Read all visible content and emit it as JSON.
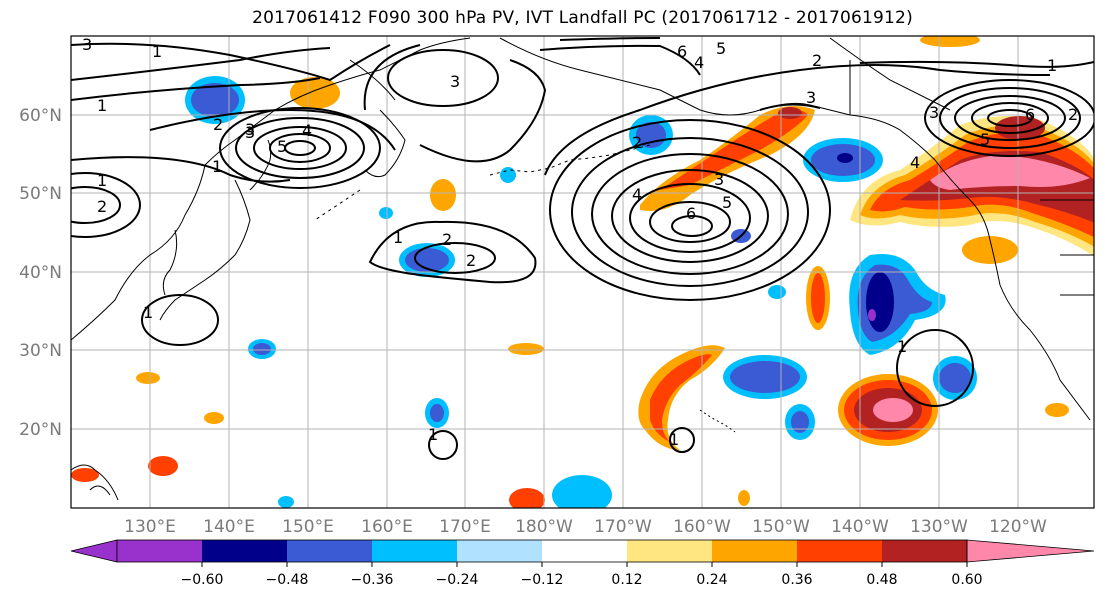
{
  "title": "2017061412 F090 300 hPa PV, IVT Landfall PC (2017061712 - 2017061912)",
  "lat_labels": [
    "60°N",
    "50°N",
    "40°N",
    "30°N",
    "20°N"
  ],
  "lon_labels": [
    "130°E",
    "140°E",
    "150°E",
    "160°E",
    "170°E",
    "180°W",
    "170°W",
    "160°W",
    "150°W",
    "140°W",
    "130°W",
    "120°W"
  ],
  "colorbar": {
    "ticks": [
      "−0.60",
      "−0.48",
      "−0.36",
      "−0.24",
      "−0.12",
      "0.12",
      "0.24",
      "0.36",
      "0.48",
      "0.60"
    ],
    "colors": [
      "#9932cc",
      "#00008b",
      "#3a5bd3",
      "#00bfff",
      "#b0e2ff",
      "#ffffff",
      "#ffe680",
      "#ffa500",
      "#ff4000",
      "#b22222",
      "#ff88aa"
    ]
  },
  "contour_labels": [
    "3",
    "1",
    "6",
    "5",
    "4",
    "2",
    "1",
    "1",
    "3",
    "3",
    "1",
    "2",
    "3",
    "4",
    "5",
    "1",
    "1",
    "2",
    "2",
    "2",
    "4",
    "3",
    "2",
    "5",
    "6",
    "3",
    "3",
    "6",
    "5",
    "4",
    "2",
    "1",
    "1",
    "1",
    "1"
  ]
}
